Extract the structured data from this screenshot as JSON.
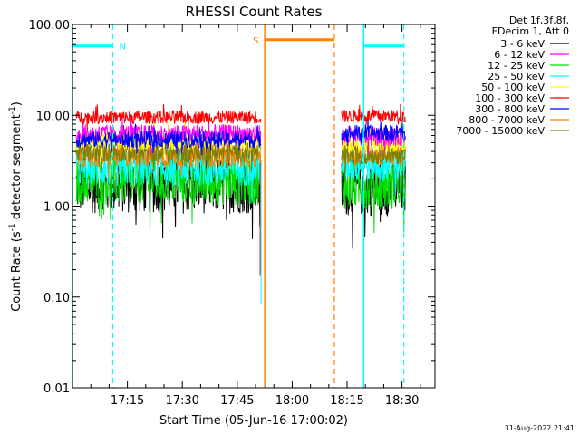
{
  "chart_data": {
    "type": "line",
    "title": "RHESSI Count Rates",
    "xlabel": "Start Time (05-Jun-16 17:00:02)",
    "ylabel": {
      "main": "Count Rate (s",
      "sup": "-1",
      "mid": " detector segment",
      "sup2": "-1",
      "end": ")"
    },
    "y_scale": "log",
    "ylim": [
      0.01,
      100
    ],
    "y_ticks": [
      "0.01",
      "0.10",
      "1.00",
      "10.00",
      "100.00"
    ],
    "xlim_minutes": [
      0,
      99
    ],
    "x_ticks": [
      {
        "minutes": 15,
        "label": "17:15"
      },
      {
        "minutes": 30,
        "label": "17:30"
      },
      {
        "minutes": 45,
        "label": "17:45"
      },
      {
        "minutes": 60,
        "label": "18:00"
      },
      {
        "minutes": 75,
        "label": "18:15"
      },
      {
        "minutes": 90,
        "label": "18:30"
      }
    ],
    "data_gaps_minutes": [
      [
        51.5,
        73.5
      ]
    ],
    "legend_header": [
      "Det 1f,3f,8f,",
      "FDecim 1, Att 0"
    ],
    "legend_placement": "top-right outside plot",
    "series": [
      {
        "name": "3 - 6 keV",
        "color": "#000000",
        "level_pre": 1.7,
        "level_post": 1.6,
        "noise": 0.35
      },
      {
        "name": "6 - 12 keV",
        "color": "#ff00ff",
        "level_pre": 6.2,
        "level_post": 5.8,
        "noise": 0.12
      },
      {
        "name": "12 - 25 keV",
        "color": "#00dd00",
        "level_pre": 1.9,
        "level_post": 1.7,
        "noise": 0.3
      },
      {
        "name": "25 - 50 keV",
        "color": "#00ffff",
        "level_pre": 2.6,
        "level_post": 2.9,
        "noise": 0.22
      },
      {
        "name": "50 - 100 keV",
        "color": "#ffff00",
        "level_pre": 5.3,
        "level_post": 5.0,
        "noise": 0.12
      },
      {
        "name": "100 - 300 keV",
        "color": "#ff0000",
        "level_pre": 9.5,
        "level_post": 9.8,
        "noise": 0.08
      },
      {
        "name": "300 - 800 keV",
        "color": "#0000ff",
        "level_pre": 5.4,
        "level_post": 6.4,
        "noise": 0.1
      },
      {
        "name": "800 - 7000 keV",
        "color": "#ff8000",
        "level_pre": 3.6,
        "level_post": 3.8,
        "noise": 0.14
      },
      {
        "name": "7000 - 15000 keV",
        "color": "#808000",
        "level_pre": 3.9,
        "level_post": 3.7,
        "noise": 0.12
      }
    ],
    "annotations": [
      {
        "label": "N",
        "color": "#00ffff",
        "start_minutes": 0,
        "end_minutes": 11,
        "bar_level": 58,
        "line_style": "dashed",
        "line_at_minutes": 11
      },
      {
        "label": "S",
        "color": "#ff8000",
        "start_minutes": 52.5,
        "end_minutes": 71.5,
        "bar_level": 68,
        "line_style": "dashed",
        "line_at_minutes": 71.5
      },
      {
        "label": "",
        "color": "#00ffff",
        "start_minutes": 79.5,
        "end_minutes": 90.5,
        "bar_level": 58,
        "line_style": "dashed",
        "line_at_minutes": 90.5
      }
    ],
    "solid_markers": [
      {
        "color": "#00ffff",
        "minutes": 0
      },
      {
        "color": "#ff8000",
        "minutes": 52.5
      },
      {
        "color": "#00ffff",
        "minutes": 79.5
      }
    ],
    "grid": false
  },
  "footer_timestamp": "31-Aug-2022 21:41"
}
